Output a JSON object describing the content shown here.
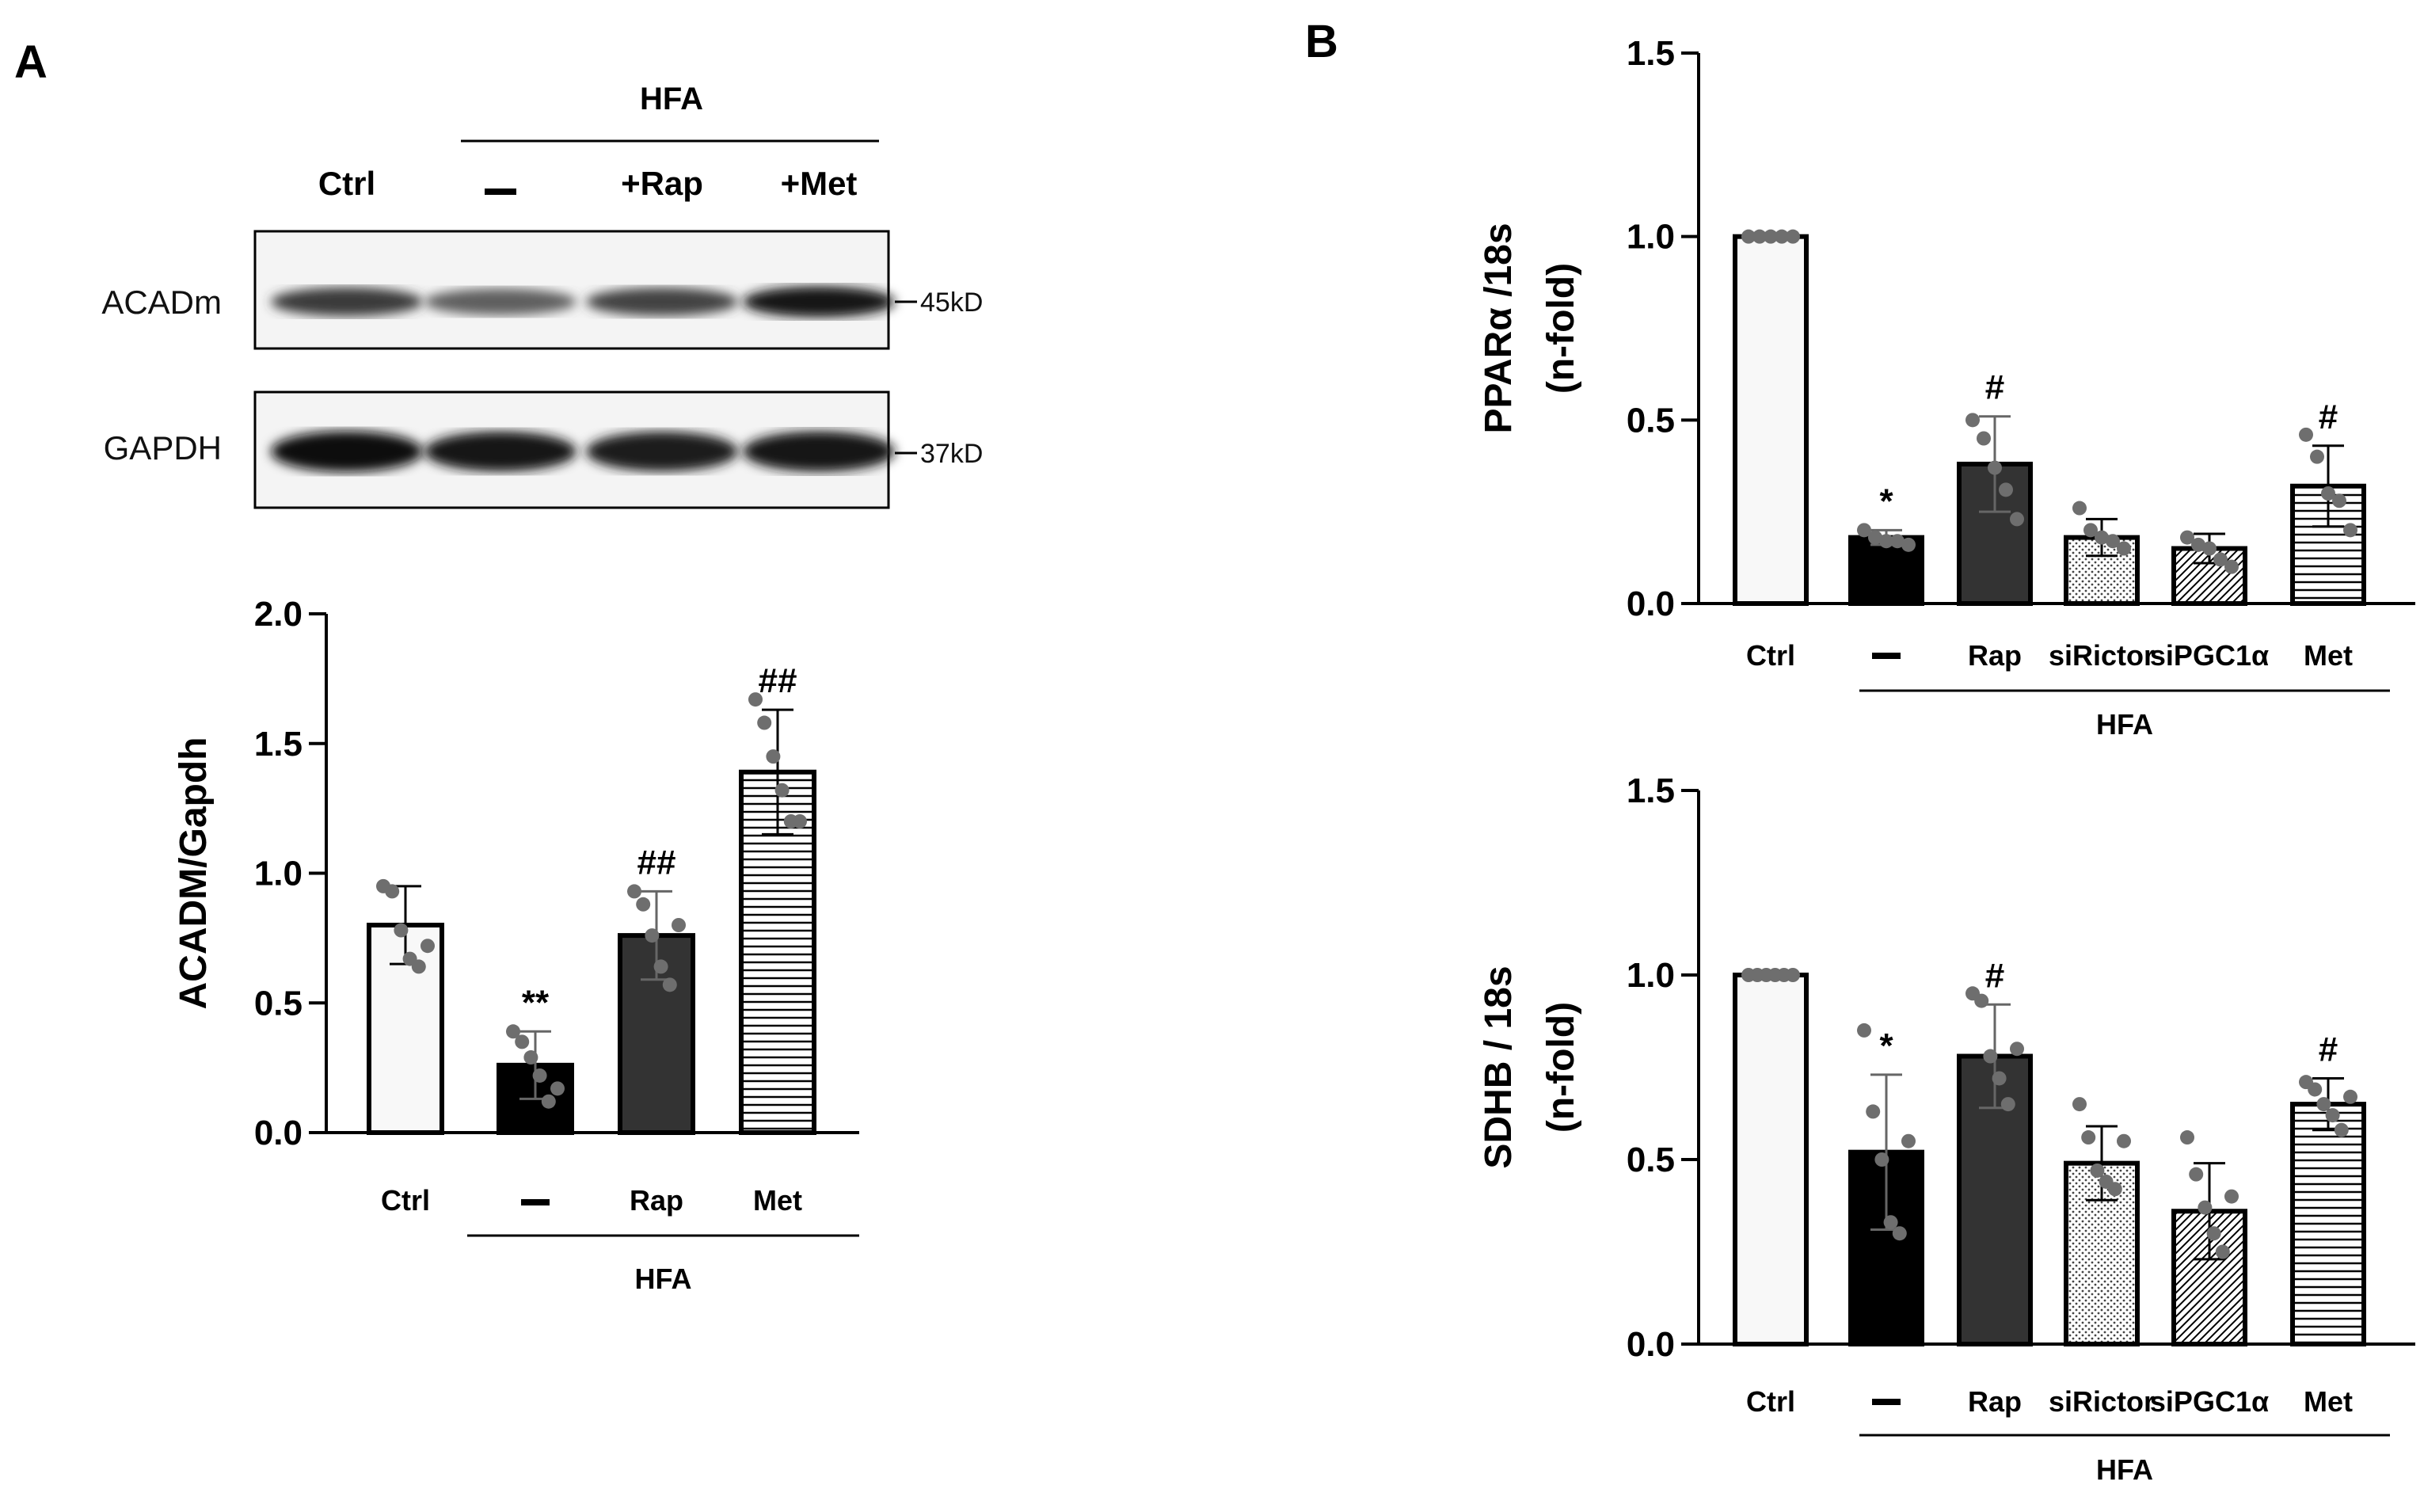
{
  "panels": {
    "a": "A",
    "b": "B"
  },
  "blot": {
    "group_label": "HFA",
    "lanes": [
      "Ctrl",
      "—",
      "+Rap",
      "+Met"
    ],
    "bands": [
      {
        "name": "ACADm",
        "kd": "45kD",
        "intensity": [
          0.75,
          0.55,
          0.7,
          0.95
        ]
      },
      {
        "name": "GAPDH",
        "kd": "37kD",
        "intensity": [
          1.0,
          0.92,
          0.9,
          0.95
        ]
      }
    ]
  },
  "chart_data": [
    {
      "type": "bar",
      "panel": "A",
      "ylabel": "ACADM/Gapdh",
      "categories": [
        "Ctrl",
        "—",
        "Rap",
        "Met"
      ],
      "group_label": "HFA",
      "group_span": [
        1,
        3
      ],
      "values": [
        0.8,
        0.26,
        0.76,
        1.39
      ],
      "errors": [
        0.15,
        0.13,
        0.17,
        0.24
      ],
      "significance": [
        "",
        "**",
        "##",
        "##"
      ],
      "points": [
        [
          0.95,
          0.93,
          0.78,
          0.67,
          0.64,
          0.72
        ],
        [
          0.39,
          0.35,
          0.29,
          0.22,
          0.12,
          0.17
        ],
        [
          0.93,
          0.88,
          0.76,
          0.64,
          0.57,
          0.8
        ],
        [
          1.67,
          1.58,
          1.45,
          1.32,
          1.2,
          1.2
        ]
      ],
      "patterns": [
        "white",
        "black",
        "dark",
        "hlines"
      ],
      "ylim": [
        0,
        2.0
      ],
      "yticks": [
        "0.0",
        "0.5",
        "1.0",
        "1.5",
        "2.0"
      ]
    },
    {
      "type": "bar",
      "panel": "B",
      "ylabel": "PPARα /18s",
      "ylabel2": "(n-fold)",
      "categories": [
        "Ctrl",
        "—",
        "Rap",
        "siRictor",
        "siPGC1α",
        "Met"
      ],
      "group_label": "HFA",
      "group_span": [
        1,
        5
      ],
      "values": [
        1.0,
        0.18,
        0.38,
        0.18,
        0.15,
        0.32
      ],
      "errors": [
        0.0,
        0.02,
        0.13,
        0.05,
        0.04,
        0.11
      ],
      "significance": [
        "",
        "*",
        "#",
        "",
        "",
        "#"
      ],
      "points": [
        [
          1.0,
          1.0,
          1.0,
          1.0,
          1.0
        ],
        [
          0.2,
          0.18,
          0.17,
          0.17,
          0.16
        ],
        [
          0.5,
          0.45,
          0.37,
          0.31,
          0.23
        ],
        [
          0.26,
          0.2,
          0.18,
          0.17,
          0.15
        ],
        [
          0.18,
          0.16,
          0.15,
          0.12,
          0.1
        ],
        [
          0.46,
          0.4,
          0.3,
          0.28,
          0.2
        ]
      ],
      "patterns": [
        "white",
        "black",
        "dark",
        "dots",
        "diag",
        "hlines"
      ],
      "ylim": [
        0,
        1.5
      ],
      "yticks": [
        "0.0",
        "0.5",
        "1.0",
        "1.5"
      ]
    },
    {
      "type": "bar",
      "panel": "B",
      "ylabel": "SDHB / 18s",
      "ylabel2": "(n-fold)",
      "categories": [
        "Ctrl",
        "—",
        "Rap",
        "siRictor",
        "siPGC1α",
        "Met"
      ],
      "group_label": "HFA",
      "group_span": [
        1,
        5
      ],
      "values": [
        1.0,
        0.52,
        0.78,
        0.49,
        0.36,
        0.65
      ],
      "errors": [
        0.0,
        0.21,
        0.14,
        0.1,
        0.13,
        0.07
      ],
      "significance": [
        "",
        "*",
        "#",
        "",
        "",
        "#"
      ],
      "points": [
        [
          1.0,
          1.0,
          1.0,
          1.0,
          1.0,
          1.0
        ],
        [
          0.85,
          0.63,
          0.5,
          0.33,
          0.3,
          0.55
        ],
        [
          0.95,
          0.93,
          0.78,
          0.72,
          0.65,
          0.8
        ],
        [
          0.65,
          0.56,
          0.47,
          0.44,
          0.42,
          0.55
        ],
        [
          0.56,
          0.46,
          0.37,
          0.3,
          0.25,
          0.4
        ],
        [
          0.71,
          0.69,
          0.65,
          0.62,
          0.58,
          0.67
        ]
      ],
      "patterns": [
        "white",
        "black",
        "dark",
        "dots",
        "diag",
        "hlines"
      ],
      "ylim": [
        0,
        1.5
      ],
      "yticks": [
        "0.0",
        "0.5",
        "1.0",
        "1.5"
      ]
    }
  ]
}
